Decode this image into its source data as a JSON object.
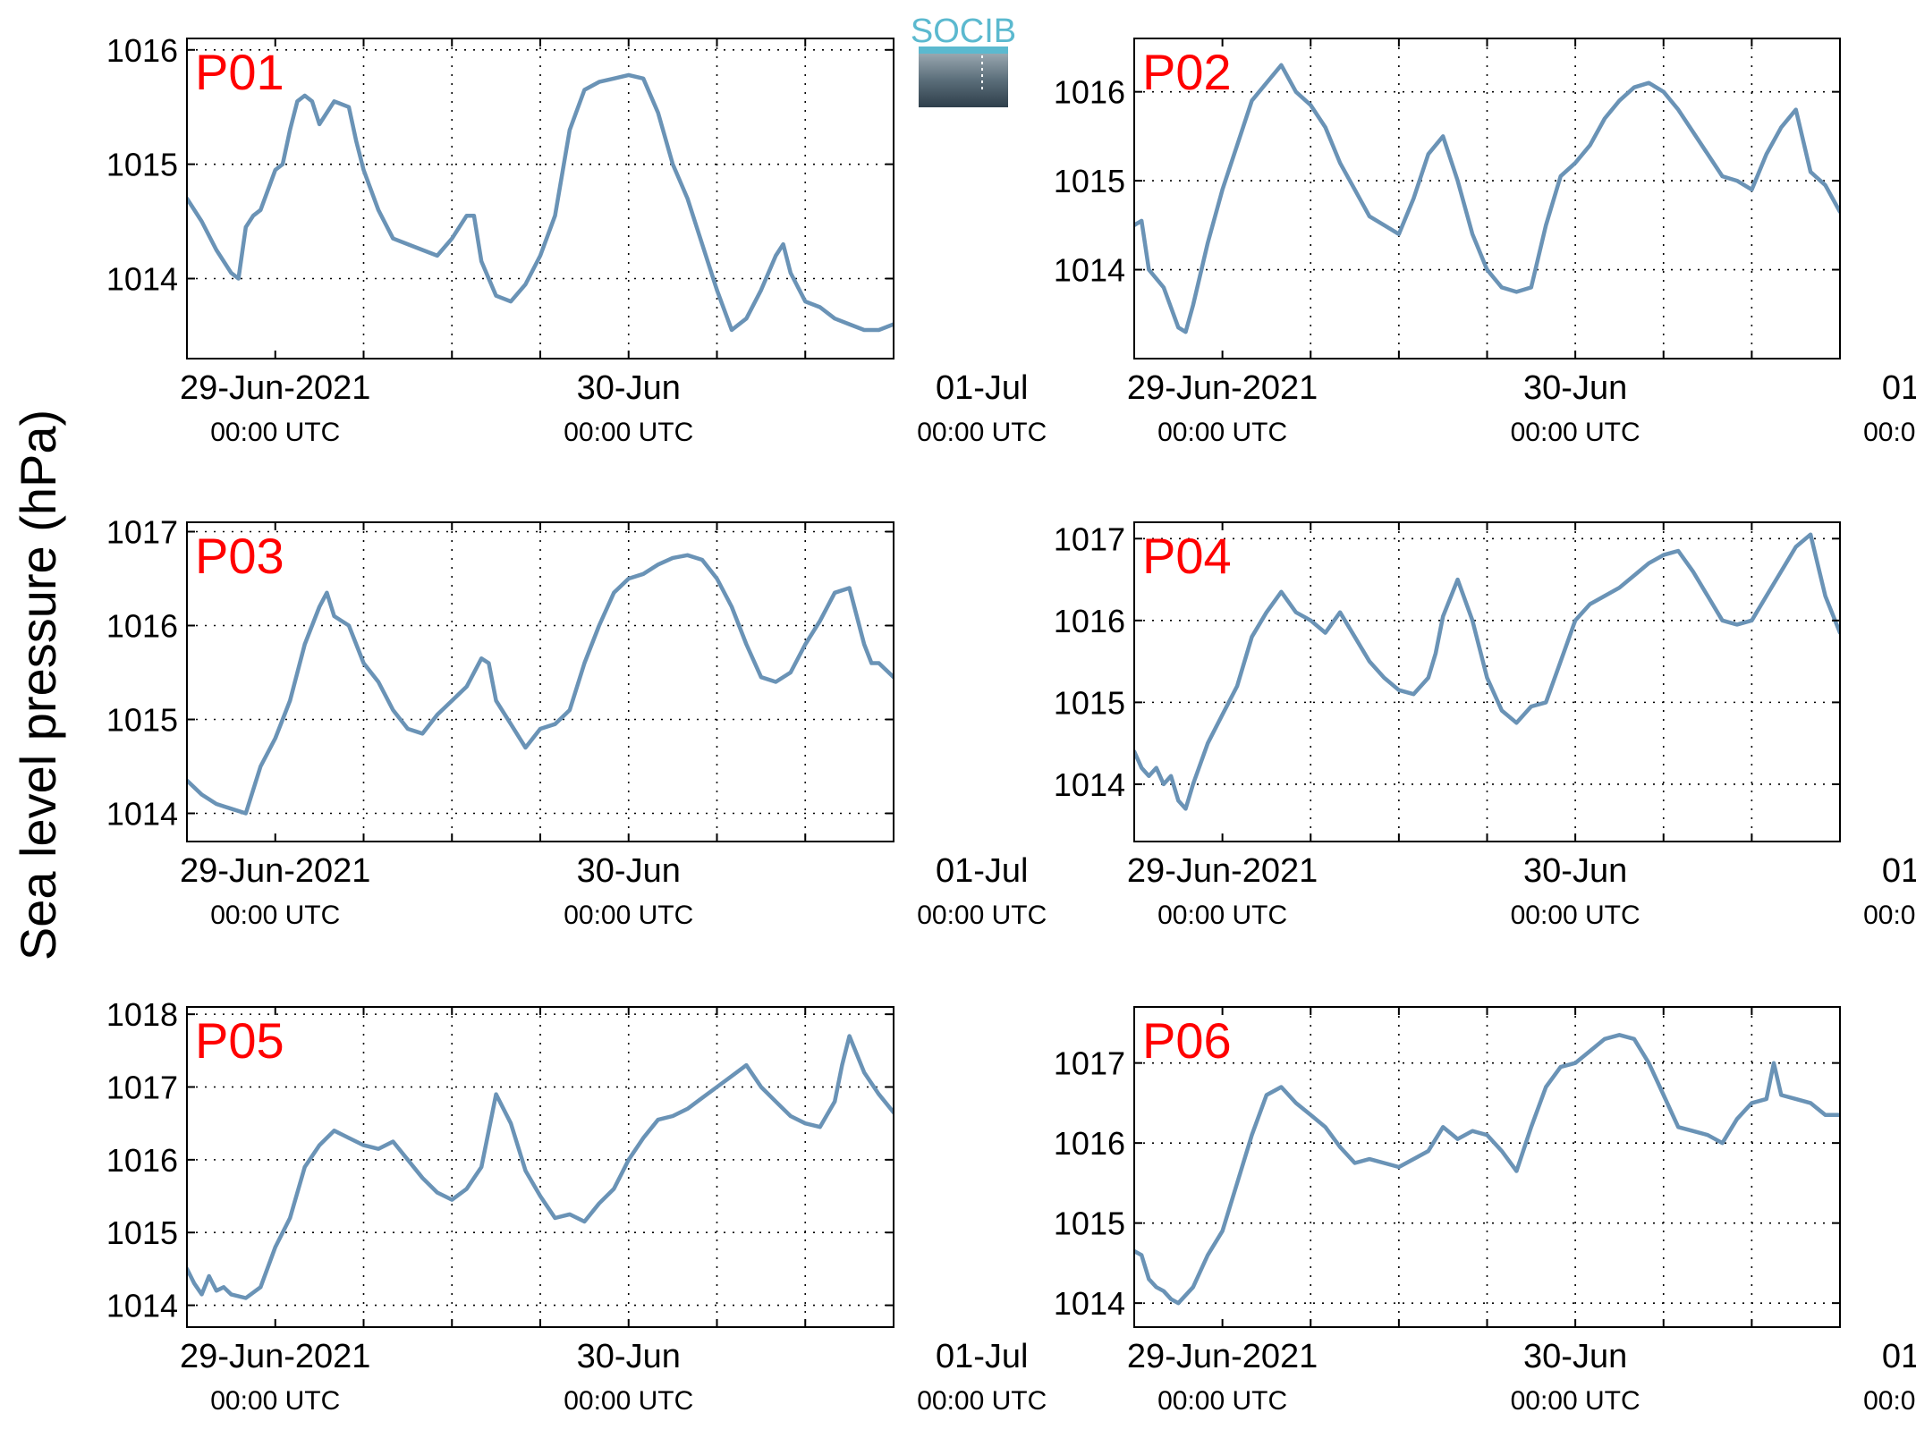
{
  "figure": {
    "ylabel": "Sea level pressure (hPa)",
    "logo_text": "SOCIB",
    "line_color": "#6a93b6",
    "label_color": "#ff0000",
    "xtick_labels": [
      {
        "date": "29-Jun-2021",
        "time": "00:00 UTC"
      },
      {
        "date": "30-Jun",
        "time": "00:00 UTC"
      },
      {
        "date": "01-Jul",
        "time": "00:00 UTC"
      }
    ]
  },
  "chart_data": [
    {
      "type": "line",
      "title": "P01",
      "xlabel": "",
      "ylabel": "",
      "x_unit": "hours since 29-Jun-2021 00:00 UTC",
      "xlim": [
        -6,
        42
      ],
      "ylim": [
        1013.3,
        1016.1
      ],
      "yticks": [
        1014,
        1015,
        1016
      ],
      "grid": true,
      "x": [
        -6,
        -5,
        -4,
        -3,
        -2.5,
        -2,
        -1.5,
        -1,
        0,
        0.5,
        1,
        1.5,
        2,
        2.5,
        3,
        4,
        5,
        5.5,
        6,
        7,
        8,
        9,
        10,
        11,
        12,
        13,
        13.5,
        14,
        15,
        16,
        17,
        18,
        19,
        20,
        21,
        22,
        23,
        24,
        25,
        26,
        27,
        28,
        29,
        30,
        31,
        32,
        33,
        34,
        34.5,
        35,
        36,
        37,
        38,
        39,
        40,
        41,
        42
      ],
      "values": [
        1014.7,
        1014.5,
        1014.25,
        1014.05,
        1014.0,
        1014.45,
        1014.55,
        1014.6,
        1014.95,
        1015.0,
        1015.3,
        1015.55,
        1015.6,
        1015.55,
        1015.35,
        1015.55,
        1015.5,
        1015.2,
        1014.95,
        1014.6,
        1014.35,
        1014.3,
        1014.25,
        1014.2,
        1014.35,
        1014.55,
        1014.55,
        1014.15,
        1013.85,
        1013.8,
        1013.95,
        1014.2,
        1014.55,
        1015.3,
        1015.65,
        1015.72,
        1015.75,
        1015.78,
        1015.75,
        1015.45,
        1015.0,
        1014.7,
        1014.3,
        1013.9,
        1013.55,
        1013.65,
        1013.9,
        1014.2,
        1014.3,
        1014.05,
        1013.8,
        1013.75,
        1013.65,
        1013.6,
        1013.55,
        1013.55,
        1013.6
      ]
    },
    {
      "type": "line",
      "title": "P02",
      "xlabel": "",
      "ylabel": "",
      "x_unit": "hours since 29-Jun-2021 00:00 UTC",
      "xlim": [
        -6,
        42
      ],
      "ylim": [
        1013.0,
        1016.6
      ],
      "yticks": [
        1014,
        1015,
        1016
      ],
      "grid": true,
      "x": [
        -6,
        -5.5,
        -5,
        -4,
        -3,
        -2.5,
        -2,
        -1,
        0,
        1,
        2,
        3,
        4,
        5,
        6,
        7,
        8,
        9,
        10,
        11,
        12,
        13,
        14,
        15,
        16,
        17,
        18,
        19,
        20,
        21,
        22,
        23,
        24,
        25,
        26,
        27,
        28,
        29,
        30,
        31,
        32,
        33,
        34,
        35,
        36,
        37,
        38,
        39,
        40,
        41,
        42
      ],
      "values": [
        1014.5,
        1014.55,
        1014.0,
        1013.8,
        1013.35,
        1013.3,
        1013.6,
        1014.3,
        1014.9,
        1015.4,
        1015.9,
        1016.1,
        1016.3,
        1016.0,
        1015.85,
        1015.6,
        1015.2,
        1014.9,
        1014.6,
        1014.5,
        1014.4,
        1014.8,
        1015.3,
        1015.5,
        1015.0,
        1014.4,
        1014.0,
        1013.8,
        1013.75,
        1013.8,
        1014.5,
        1015.05,
        1015.2,
        1015.4,
        1015.7,
        1015.9,
        1016.05,
        1016.1,
        1016.0,
        1015.8,
        1015.55,
        1015.3,
        1015.05,
        1015.0,
        1014.9,
        1015.3,
        1015.6,
        1015.8,
        1015.1,
        1014.95,
        1014.65
      ]
    },
    {
      "type": "line",
      "title": "P03",
      "xlabel": "",
      "ylabel": "",
      "x_unit": "hours since 29-Jun-2021 00:00 UTC",
      "xlim": [
        -6,
        42
      ],
      "ylim": [
        1013.7,
        1017.1
      ],
      "yticks": [
        1014,
        1015,
        1016,
        1017
      ],
      "grid": true,
      "x": [
        -6,
        -5,
        -4,
        -3,
        -2,
        -1,
        0,
        1,
        2,
        3,
        3.5,
        4,
        5,
        6,
        7,
        8,
        9,
        10,
        11,
        12,
        13,
        14,
        14.5,
        15,
        16,
        17,
        18,
        19,
        20,
        21,
        22,
        23,
        24,
        25,
        26,
        27,
        28,
        29,
        30,
        31,
        32,
        33,
        34,
        35,
        36,
        37,
        38,
        39,
        40,
        40.5,
        41,
        42
      ],
      "values": [
        1014.35,
        1014.2,
        1014.1,
        1014.05,
        1014.0,
        1014.5,
        1014.8,
        1015.2,
        1015.8,
        1016.2,
        1016.35,
        1016.1,
        1016.0,
        1015.6,
        1015.4,
        1015.1,
        1014.9,
        1014.85,
        1015.05,
        1015.2,
        1015.35,
        1015.65,
        1015.6,
        1015.2,
        1014.95,
        1014.7,
        1014.9,
        1014.95,
        1015.1,
        1015.6,
        1016.0,
        1016.35,
        1016.5,
        1016.55,
        1016.65,
        1016.72,
        1016.75,
        1016.7,
        1016.5,
        1016.2,
        1015.8,
        1015.45,
        1015.4,
        1015.5,
        1015.8,
        1016.05,
        1016.35,
        1016.4,
        1015.8,
        1015.6,
        1015.6,
        1015.45
      ]
    },
    {
      "type": "line",
      "title": "P04",
      "xlabel": "",
      "ylabel": "",
      "x_unit": "hours since 29-Jun-2021 00:00 UTC",
      "xlim": [
        -6,
        42
      ],
      "ylim": [
        1013.3,
        1017.2
      ],
      "yticks": [
        1014,
        1015,
        1016,
        1017
      ],
      "grid": true,
      "x": [
        -6,
        -5.5,
        -5,
        -4.5,
        -4,
        -3.5,
        -3,
        -2.5,
        -2,
        -1,
        0,
        1,
        2,
        3,
        4,
        5,
        6,
        7,
        8,
        9,
        10,
        11,
        12,
        13,
        14,
        14.5,
        15,
        16,
        17,
        18,
        19,
        20,
        21,
        22,
        23,
        24,
        25,
        26,
        27,
        28,
        29,
        30,
        31,
        32,
        33,
        34,
        35,
        36,
        37,
        38,
        39,
        40,
        41,
        42
      ],
      "values": [
        1014.4,
        1014.2,
        1014.1,
        1014.2,
        1014.0,
        1014.1,
        1013.8,
        1013.7,
        1014.0,
        1014.5,
        1014.85,
        1015.2,
        1015.8,
        1016.1,
        1016.35,
        1016.1,
        1016.0,
        1015.85,
        1016.1,
        1015.8,
        1015.5,
        1015.3,
        1015.15,
        1015.1,
        1015.3,
        1015.6,
        1016.05,
        1016.5,
        1016.0,
        1015.3,
        1014.9,
        1014.75,
        1014.95,
        1015.0,
        1015.5,
        1016.0,
        1016.2,
        1016.3,
        1016.4,
        1016.55,
        1016.7,
        1016.8,
        1016.85,
        1016.6,
        1016.3,
        1016.0,
        1015.95,
        1016.0,
        1016.3,
        1016.6,
        1016.9,
        1017.05,
        1016.3,
        1015.85
      ]
    },
    {
      "type": "line",
      "title": "P05",
      "xlabel": "",
      "ylabel": "",
      "x_unit": "hours since 29-Jun-2021 00:00 UTC",
      "xlim": [
        -6,
        42
      ],
      "ylim": [
        1013.7,
        1018.1
      ],
      "yticks": [
        1014,
        1015,
        1016,
        1017,
        1018
      ],
      "grid": true,
      "x": [
        -6,
        -5.5,
        -5,
        -4.5,
        -4,
        -3.5,
        -3,
        -2,
        -1,
        0,
        1,
        2,
        3,
        4,
        5,
        6,
        7,
        8,
        9,
        10,
        11,
        12,
        13,
        14,
        15,
        16,
        17,
        18,
        19,
        20,
        21,
        22,
        23,
        24,
        25,
        26,
        27,
        28,
        29,
        30,
        31,
        32,
        33,
        34,
        35,
        36,
        37,
        38,
        38.5,
        39,
        40,
        41,
        42
      ],
      "values": [
        1014.5,
        1014.3,
        1014.15,
        1014.4,
        1014.2,
        1014.25,
        1014.15,
        1014.1,
        1014.25,
        1014.8,
        1015.2,
        1015.9,
        1016.2,
        1016.4,
        1016.3,
        1016.2,
        1016.15,
        1016.25,
        1016.0,
        1015.75,
        1015.55,
        1015.45,
        1015.6,
        1015.9,
        1016.9,
        1016.5,
        1015.85,
        1015.5,
        1015.2,
        1015.25,
        1015.15,
        1015.4,
        1015.6,
        1016.0,
        1016.3,
        1016.55,
        1016.6,
        1016.7,
        1016.85,
        1017.0,
        1017.15,
        1017.3,
        1017.0,
        1016.8,
        1016.6,
        1016.5,
        1016.45,
        1016.8,
        1017.3,
        1017.7,
        1017.2,
        1016.9,
        1016.65
      ]
    },
    {
      "type": "line",
      "title": "P06",
      "xlabel": "",
      "ylabel": "",
      "x_unit": "hours since 29-Jun-2021 00:00 UTC",
      "xlim": [
        -6,
        42
      ],
      "ylim": [
        1013.7,
        1017.7
      ],
      "yticks": [
        1014,
        1015,
        1016,
        1017
      ],
      "grid": true,
      "x": [
        -6,
        -5.5,
        -5,
        -4.5,
        -4,
        -3.5,
        -3,
        -2,
        -1,
        0,
        1,
        2,
        3,
        4,
        5,
        6,
        7,
        8,
        9,
        10,
        11,
        12,
        13,
        14,
        15,
        16,
        17,
        18,
        19,
        20,
        21,
        22,
        23,
        24,
        25,
        26,
        27,
        28,
        29,
        30,
        31,
        32,
        33,
        34,
        35,
        36,
        37,
        37.5,
        38,
        39,
        40,
        41,
        42
      ],
      "values": [
        1014.65,
        1014.6,
        1014.3,
        1014.2,
        1014.15,
        1014.05,
        1014.0,
        1014.2,
        1014.6,
        1014.9,
        1015.5,
        1016.1,
        1016.6,
        1016.7,
        1016.5,
        1016.35,
        1016.2,
        1015.95,
        1015.75,
        1015.8,
        1015.75,
        1015.7,
        1015.8,
        1015.9,
        1016.2,
        1016.05,
        1016.15,
        1016.1,
        1015.9,
        1015.65,
        1016.2,
        1016.7,
        1016.95,
        1017.0,
        1017.15,
        1017.3,
        1017.35,
        1017.3,
        1017.0,
        1016.6,
        1016.2,
        1016.15,
        1016.1,
        1016.0,
        1016.3,
        1016.5,
        1016.55,
        1017.0,
        1016.6,
        1016.55,
        1016.5,
        1016.35,
        1016.35
      ]
    }
  ]
}
